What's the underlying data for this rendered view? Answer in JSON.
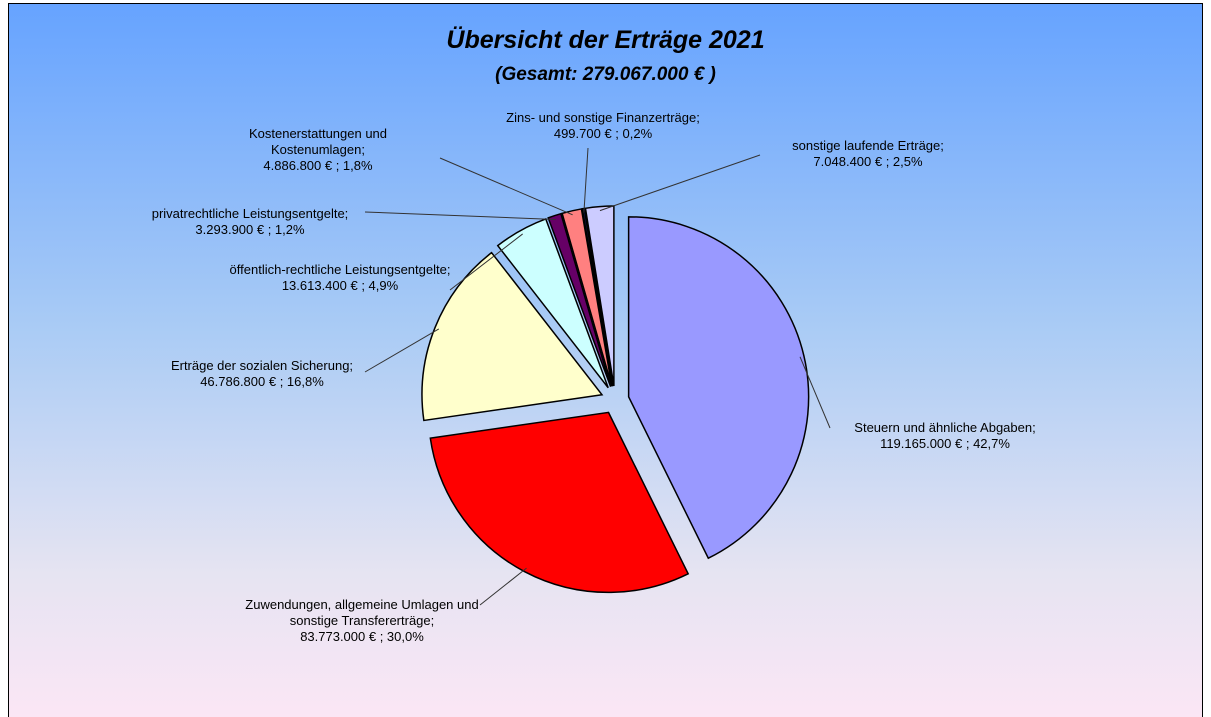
{
  "chart_data": {
    "type": "pie",
    "title": "Übersicht der Erträge 2021",
    "subtitle": "(Gesamt: 279.067.000 € )",
    "categories": [
      "Steuern und ähnliche Abgaben;",
      "Zuwendungen, allgemeine Umlagen und sonstige Transfererträge;",
      "Erträge der sozialen Sicherung;",
      "öffentlich-rechtliche Leistungsentgelte;",
      "privatrechtliche Leistungsentgelte;",
      "Kostenerstattungen und Kostenumlagen;",
      "Zins- und sonstige Finanzerträge;",
      "sonstige laufende Erträge;"
    ],
    "values": [
      119165000,
      83773000,
      46786800,
      13613400,
      3293900,
      4886800,
      499700,
      7048400
    ],
    "value_labels": [
      "119.165.000 € ; 42,7%",
      "83.773.000 € ; 30,0%",
      "46.786.800 € ; 16,8%",
      "13.613.400 € ; 4,9%",
      "3.293.900 € ; 1,2%",
      "4.886.800 € ; 1,8%",
      "499.700 € ; 0,2%",
      "7.048.400 € ; 2,5%"
    ],
    "colors": [
      "#9999ff",
      "#ff0000",
      "#ffffcc",
      "#ccffff",
      "#660066",
      "#ff8080",
      "#1a1a66",
      "#ccccff"
    ]
  }
}
